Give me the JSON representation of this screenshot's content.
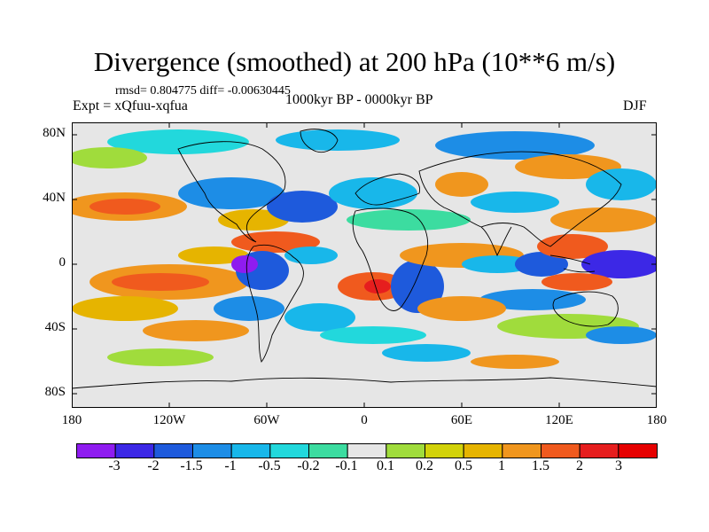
{
  "header": {
    "title": "Divergence (smoothed) at 200 hPa (10**6 m/s)",
    "stats": "rmsd= 0.804775  diff= -0.00630445",
    "experiment": "Expt = xQfuu-xqfua",
    "period": "1000kyr BP - 0000kyr BP",
    "season": "DJF"
  },
  "map": {
    "projection": "cylindrical-equidistant",
    "lat_range": [
      -90,
      90
    ],
    "lon_range": [
      -180,
      180
    ],
    "lat_ticks": [
      "80N",
      "40N",
      "0",
      "40S",
      "80S"
    ],
    "lon_ticks": [
      "180",
      "120W",
      "60W",
      "0",
      "60E",
      "120E",
      "180"
    ]
  },
  "colorbar": {
    "colors": [
      "#8f1cf0",
      "#3c28e6",
      "#1e5adc",
      "#1d8de6",
      "#18b7ea",
      "#22d8dc",
      "#3cdca0",
      "#e6e6e6",
      "#a0dc3c",
      "#d2d20a",
      "#e6b400",
      "#f0961e",
      "#f05a1e",
      "#e61e1e",
      "#e60000"
    ],
    "labels": [
      "-3",
      "-2",
      "-1.5",
      "-1",
      "-0.5",
      "-0.2",
      "-0.1",
      "0.1",
      "0.2",
      "0.5",
      "1",
      "1.5",
      "2",
      "3"
    ]
  }
}
